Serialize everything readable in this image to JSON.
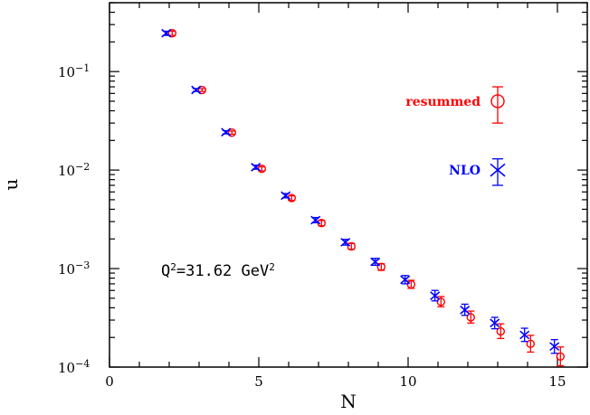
{
  "chart_data": {
    "type": "scatter",
    "xlabel": "N",
    "ylabel": "u",
    "xlim": [
      0,
      16
    ],
    "ylim": [
      0.0001,
      0.5
    ],
    "yscale": "log",
    "grid": false,
    "legend_position": "right",
    "x_ticks": [
      {
        "value": 0,
        "label": "0"
      },
      {
        "value": 5,
        "label": "5"
      },
      {
        "value": 10,
        "label": "10"
      },
      {
        "value": 15,
        "label": "15"
      }
    ],
    "y_ticks": [
      {
        "value": 0.1,
        "base": "10",
        "exp": "−1"
      },
      {
        "value": 0.01,
        "base": "10",
        "exp": "−2"
      },
      {
        "value": 0.001,
        "base": "10",
        "exp": "−3"
      },
      {
        "value": 0.0001,
        "base": "10",
        "exp": "−4"
      }
    ],
    "annotation": {
      "text": "Q",
      "sup1": "2",
      "mid": "=31.62 GeV",
      "sup2": "2"
    },
    "series": [
      {
        "name": "resummed",
        "marker": "circle",
        "color": "#ff0000",
        "points": [
          {
            "x": 2.1,
            "y": 0.245,
            "lo": 0.233,
            "hi": 0.257
          },
          {
            "x": 3.1,
            "y": 0.065,
            "lo": 0.0628,
            "hi": 0.0672
          },
          {
            "x": 4.1,
            "y": 0.024,
            "lo": 0.0231,
            "hi": 0.0249
          },
          {
            "x": 5.1,
            "y": 0.0103,
            "lo": 0.0098,
            "hi": 0.0108
          },
          {
            "x": 6.1,
            "y": 0.0052,
            "lo": 0.00492,
            "hi": 0.00548
          },
          {
            "x": 7.1,
            "y": 0.0029,
            "lo": 0.00272,
            "hi": 0.00308
          },
          {
            "x": 8.1,
            "y": 0.00168,
            "lo": 0.00157,
            "hi": 0.0018
          },
          {
            "x": 9.1,
            "y": 0.00104,
            "lo": 0.00096,
            "hi": 0.00112
          },
          {
            "x": 10.1,
            "y": 0.00069,
            "lo": 0.00063,
            "hi": 0.00076
          },
          {
            "x": 11.1,
            "y": 0.00046,
            "lo": 0.00041,
            "hi": 0.00052
          },
          {
            "x": 12.1,
            "y": 0.00032,
            "lo": 0.00028,
            "hi": 0.00037
          },
          {
            "x": 13.1,
            "y": 0.00023,
            "lo": 0.000195,
            "hi": 0.000275
          },
          {
            "x": 14.1,
            "y": 0.000172,
            "lo": 0.000142,
            "hi": 0.00021
          },
          {
            "x": 15.1,
            "y": 0.000128,
            "lo": 0.000103,
            "hi": 0.00016
          }
        ],
        "legend": {
          "x": 13,
          "y": 0.05,
          "lo": 0.03,
          "hi": 0.07
        }
      },
      {
        "name": "NLO",
        "marker": "cross",
        "color": "#0000ff",
        "points": [
          {
            "x": 1.9,
            "y": 0.245,
            "lo": 0.233,
            "hi": 0.257
          },
          {
            "x": 2.9,
            "y": 0.065,
            "lo": 0.0628,
            "hi": 0.0672
          },
          {
            "x": 3.9,
            "y": 0.0242,
            "lo": 0.0233,
            "hi": 0.0251
          },
          {
            "x": 4.9,
            "y": 0.0107,
            "lo": 0.0102,
            "hi": 0.0112
          },
          {
            "x": 5.9,
            "y": 0.0055,
            "lo": 0.00522,
            "hi": 0.00578
          },
          {
            "x": 6.9,
            "y": 0.0031,
            "lo": 0.00292,
            "hi": 0.0033
          },
          {
            "x": 7.9,
            "y": 0.00185,
            "lo": 0.00173,
            "hi": 0.00198
          },
          {
            "x": 8.9,
            "y": 0.00117,
            "lo": 0.00108,
            "hi": 0.00127
          },
          {
            "x": 9.9,
            "y": 0.00077,
            "lo": 0.0007,
            "hi": 0.00085
          },
          {
            "x": 10.9,
            "y": 0.00053,
            "lo": 0.00047,
            "hi": 0.0006
          },
          {
            "x": 11.9,
            "y": 0.00038,
            "lo": 0.000335,
            "hi": 0.000435
          },
          {
            "x": 12.9,
            "y": 0.00028,
            "lo": 0.000245,
            "hi": 0.00032
          },
          {
            "x": 13.9,
            "y": 0.000212,
            "lo": 0.000182,
            "hi": 0.000248
          },
          {
            "x": 14.9,
            "y": 0.000162,
            "lo": 0.000138,
            "hi": 0.00019
          }
        ],
        "legend": {
          "x": 13,
          "y": 0.01,
          "lo": 0.007,
          "hi": 0.013
        }
      }
    ]
  }
}
